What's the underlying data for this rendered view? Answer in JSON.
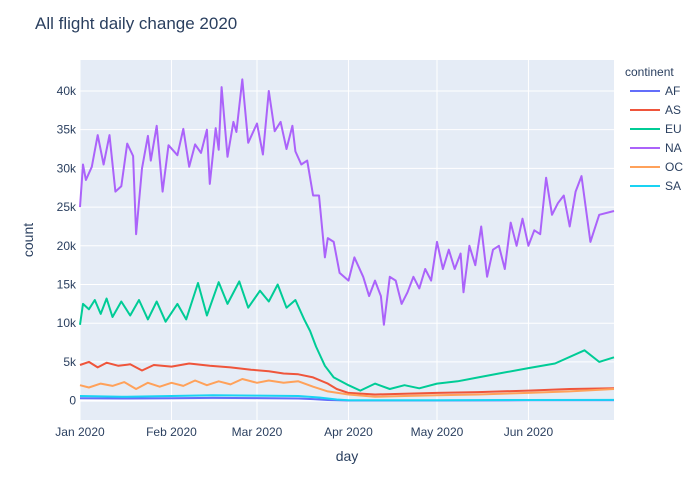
{
  "chart_data": {
    "type": "line",
    "title": "All flight daily change 2020",
    "xlabel": "day",
    "ylabel": "count",
    "x_range": [
      "2020-01-01",
      "2020-06-30"
    ],
    "x_ticks": [
      {
        "date": "2020-01-01",
        "label": "Jan 2020"
      },
      {
        "date": "2020-02-01",
        "label": "Feb 2020"
      },
      {
        "date": "2020-03-01",
        "label": "Mar 2020"
      },
      {
        "date": "2020-04-01",
        "label": "Apr 2020"
      },
      {
        "date": "2020-05-01",
        "label": "May 2020"
      },
      {
        "date": "2020-06-01",
        "label": "Jun 2020"
      }
    ],
    "ylim": [
      -2500,
      44000
    ],
    "y_ticks": [
      {
        "value": 0,
        "label": "0"
      },
      {
        "value": 5000,
        "label": "5k"
      },
      {
        "value": 10000,
        "label": "10k"
      },
      {
        "value": 15000,
        "label": "15k"
      },
      {
        "value": 20000,
        "label": "20k"
      },
      {
        "value": 25000,
        "label": "25k"
      },
      {
        "value": 30000,
        "label": "30k"
      },
      {
        "value": 35000,
        "label": "35k"
      },
      {
        "value": 40000,
        "label": "40k"
      }
    ],
    "legend": {
      "title": "continent",
      "position": "right"
    },
    "grid": true,
    "series": [
      {
        "name": "AF",
        "color": "#636efa",
        "points": [
          [
            "2020-01-01",
            300
          ],
          [
            "2020-01-15",
            280
          ],
          [
            "2020-02-01",
            320
          ],
          [
            "2020-02-15",
            350
          ],
          [
            "2020-03-01",
            330
          ],
          [
            "2020-03-15",
            280
          ],
          [
            "2020-03-20",
            200
          ],
          [
            "2020-03-25",
            80
          ],
          [
            "2020-04-01",
            20
          ],
          [
            "2020-05-01",
            25
          ],
          [
            "2020-06-01",
            40
          ],
          [
            "2020-06-30",
            60
          ]
        ]
      },
      {
        "name": "AS",
        "color": "#ef553b",
        "points": [
          [
            "2020-01-01",
            4600
          ],
          [
            "2020-01-04",
            5000
          ],
          [
            "2020-01-07",
            4300
          ],
          [
            "2020-01-10",
            4900
          ],
          [
            "2020-01-14",
            4500
          ],
          [
            "2020-01-18",
            4700
          ],
          [
            "2020-01-22",
            3900
          ],
          [
            "2020-01-26",
            4600
          ],
          [
            "2020-02-01",
            4400
          ],
          [
            "2020-02-07",
            4800
          ],
          [
            "2020-02-14",
            4500
          ],
          [
            "2020-02-21",
            4300
          ],
          [
            "2020-02-28",
            4000
          ],
          [
            "2020-03-05",
            3800
          ],
          [
            "2020-03-10",
            3500
          ],
          [
            "2020-03-15",
            3400
          ],
          [
            "2020-03-20",
            3000
          ],
          [
            "2020-03-25",
            2200
          ],
          [
            "2020-03-28",
            1500
          ],
          [
            "2020-04-01",
            1000
          ],
          [
            "2020-04-10",
            800
          ],
          [
            "2020-04-20",
            900
          ],
          [
            "2020-05-01",
            1000
          ],
          [
            "2020-05-15",
            1100
          ],
          [
            "2020-06-01",
            1300
          ],
          [
            "2020-06-15",
            1500
          ],
          [
            "2020-06-30",
            1600
          ]
        ]
      },
      {
        "name": "EU",
        "color": "#00cc96",
        "points": [
          [
            "2020-01-01",
            9800
          ],
          [
            "2020-01-02",
            12500
          ],
          [
            "2020-01-04",
            11800
          ],
          [
            "2020-01-06",
            13000
          ],
          [
            "2020-01-08",
            11200
          ],
          [
            "2020-01-10",
            13200
          ],
          [
            "2020-01-12",
            10800
          ],
          [
            "2020-01-15",
            12800
          ],
          [
            "2020-01-18",
            11000
          ],
          [
            "2020-01-21",
            13000
          ],
          [
            "2020-01-24",
            10500
          ],
          [
            "2020-01-27",
            12800
          ],
          [
            "2020-01-30",
            10200
          ],
          [
            "2020-02-03",
            12500
          ],
          [
            "2020-02-06",
            10500
          ],
          [
            "2020-02-10",
            15200
          ],
          [
            "2020-02-13",
            11000
          ],
          [
            "2020-02-17",
            15300
          ],
          [
            "2020-02-20",
            12500
          ],
          [
            "2020-02-24",
            15400
          ],
          [
            "2020-02-27",
            12000
          ],
          [
            "2020-03-02",
            14200
          ],
          [
            "2020-03-05",
            12800
          ],
          [
            "2020-03-08",
            15000
          ],
          [
            "2020-03-11",
            12000
          ],
          [
            "2020-03-14",
            13000
          ],
          [
            "2020-03-17",
            10500
          ],
          [
            "2020-03-19",
            9000
          ],
          [
            "2020-03-21",
            7000
          ],
          [
            "2020-03-24",
            4500
          ],
          [
            "2020-03-27",
            3000
          ],
          [
            "2020-04-01",
            2000
          ],
          [
            "2020-04-05",
            1300
          ],
          [
            "2020-04-10",
            2200
          ],
          [
            "2020-04-15",
            1500
          ],
          [
            "2020-04-20",
            2000
          ],
          [
            "2020-04-25",
            1600
          ],
          [
            "2020-05-01",
            2200
          ],
          [
            "2020-05-08",
            2500
          ],
          [
            "2020-05-15",
            3000
          ],
          [
            "2020-05-22",
            3500
          ],
          [
            "2020-06-01",
            4200
          ],
          [
            "2020-06-10",
            4800
          ],
          [
            "2020-06-20",
            6500
          ],
          [
            "2020-06-25",
            5000
          ],
          [
            "2020-06-30",
            5600
          ]
        ]
      },
      {
        "name": "NA",
        "color": "#ab63fa",
        "points": [
          [
            "2020-01-01",
            25000
          ],
          [
            "2020-01-02",
            30500
          ],
          [
            "2020-01-03",
            28500
          ],
          [
            "2020-01-05",
            30200
          ],
          [
            "2020-01-07",
            34300
          ],
          [
            "2020-01-09",
            30500
          ],
          [
            "2020-01-11",
            34300
          ],
          [
            "2020-01-13",
            27000
          ],
          [
            "2020-01-15",
            27700
          ],
          [
            "2020-01-17",
            33200
          ],
          [
            "2020-01-19",
            31600
          ],
          [
            "2020-01-20",
            21500
          ],
          [
            "2020-01-22",
            30000
          ],
          [
            "2020-01-24",
            34200
          ],
          [
            "2020-01-25",
            31000
          ],
          [
            "2020-01-27",
            35500
          ],
          [
            "2020-01-29",
            27000
          ],
          [
            "2020-01-31",
            33000
          ],
          [
            "2020-02-03",
            31700
          ],
          [
            "2020-02-05",
            35100
          ],
          [
            "2020-02-07",
            30200
          ],
          [
            "2020-02-09",
            33100
          ],
          [
            "2020-02-11",
            32000
          ],
          [
            "2020-02-13",
            35000
          ],
          [
            "2020-02-14",
            28000
          ],
          [
            "2020-02-16",
            35200
          ],
          [
            "2020-02-17",
            32400
          ],
          [
            "2020-02-18",
            40500
          ],
          [
            "2020-02-20",
            31500
          ],
          [
            "2020-02-22",
            36000
          ],
          [
            "2020-02-23",
            34700
          ],
          [
            "2020-02-25",
            41500
          ],
          [
            "2020-02-27",
            33300
          ],
          [
            "2020-03-01",
            35800
          ],
          [
            "2020-03-03",
            31800
          ],
          [
            "2020-03-05",
            40000
          ],
          [
            "2020-03-07",
            34800
          ],
          [
            "2020-03-09",
            36000
          ],
          [
            "2020-03-11",
            32500
          ],
          [
            "2020-03-13",
            35500
          ],
          [
            "2020-03-14",
            32200
          ],
          [
            "2020-03-16",
            30500
          ],
          [
            "2020-03-18",
            31000
          ],
          [
            "2020-03-20",
            26500
          ],
          [
            "2020-03-22",
            26500
          ],
          [
            "2020-03-24",
            18500
          ],
          [
            "2020-03-25",
            21000
          ],
          [
            "2020-03-27",
            20500
          ],
          [
            "2020-03-29",
            16500
          ],
          [
            "2020-04-01",
            15500
          ],
          [
            "2020-04-03",
            18500
          ],
          [
            "2020-04-06",
            16000
          ],
          [
            "2020-04-08",
            13500
          ],
          [
            "2020-04-10",
            15500
          ],
          [
            "2020-04-12",
            13500
          ],
          [
            "2020-04-13",
            9800
          ],
          [
            "2020-04-15",
            16000
          ],
          [
            "2020-04-17",
            15500
          ],
          [
            "2020-04-19",
            12500
          ],
          [
            "2020-04-21",
            14000
          ],
          [
            "2020-04-23",
            16000
          ],
          [
            "2020-04-25",
            14500
          ],
          [
            "2020-04-27",
            17000
          ],
          [
            "2020-04-29",
            15500
          ],
          [
            "2020-05-01",
            20500
          ],
          [
            "2020-05-03",
            17000
          ],
          [
            "2020-05-05",
            19500
          ],
          [
            "2020-05-07",
            17000
          ],
          [
            "2020-05-09",
            19000
          ],
          [
            "2020-05-10",
            14000
          ],
          [
            "2020-05-12",
            20000
          ],
          [
            "2020-05-14",
            17500
          ],
          [
            "2020-05-16",
            22500
          ],
          [
            "2020-05-18",
            16000
          ],
          [
            "2020-05-20",
            19500
          ],
          [
            "2020-05-22",
            20000
          ],
          [
            "2020-05-24",
            17000
          ],
          [
            "2020-05-26",
            23000
          ],
          [
            "2020-05-28",
            20000
          ],
          [
            "2020-05-30",
            23500
          ],
          [
            "2020-06-01",
            20000
          ],
          [
            "2020-06-03",
            22000
          ],
          [
            "2020-06-05",
            21500
          ],
          [
            "2020-06-07",
            28800
          ],
          [
            "2020-06-09",
            24000
          ],
          [
            "2020-06-11",
            25500
          ],
          [
            "2020-06-13",
            26500
          ],
          [
            "2020-06-15",
            22500
          ],
          [
            "2020-06-17",
            27000
          ],
          [
            "2020-06-19",
            29000
          ],
          [
            "2020-06-22",
            20500
          ],
          [
            "2020-06-25",
            24000
          ],
          [
            "2020-06-30",
            24500
          ]
        ]
      },
      {
        "name": "OC",
        "color": "#ffa15a",
        "points": [
          [
            "2020-01-01",
            2000
          ],
          [
            "2020-01-04",
            1700
          ],
          [
            "2020-01-08",
            2200
          ],
          [
            "2020-01-12",
            1900
          ],
          [
            "2020-01-16",
            2400
          ],
          [
            "2020-01-20",
            1500
          ],
          [
            "2020-01-24",
            2300
          ],
          [
            "2020-01-28",
            1800
          ],
          [
            "2020-02-01",
            2300
          ],
          [
            "2020-02-05",
            1900
          ],
          [
            "2020-02-09",
            2600
          ],
          [
            "2020-02-13",
            2000
          ],
          [
            "2020-02-17",
            2500
          ],
          [
            "2020-02-21",
            2100
          ],
          [
            "2020-02-25",
            2800
          ],
          [
            "2020-03-01",
            2300
          ],
          [
            "2020-03-05",
            2600
          ],
          [
            "2020-03-10",
            2300
          ],
          [
            "2020-03-15",
            2500
          ],
          [
            "2020-03-20",
            1800
          ],
          [
            "2020-03-25",
            1200
          ],
          [
            "2020-04-01",
            800
          ],
          [
            "2020-04-10",
            500
          ],
          [
            "2020-04-20",
            600
          ],
          [
            "2020-05-01",
            700
          ],
          [
            "2020-05-15",
            800
          ],
          [
            "2020-06-01",
            1000
          ],
          [
            "2020-06-15",
            1200
          ],
          [
            "2020-06-30",
            1500
          ]
        ]
      },
      {
        "name": "SA",
        "color": "#19d3f3",
        "points": [
          [
            "2020-01-01",
            600
          ],
          [
            "2020-01-15",
            500
          ],
          [
            "2020-02-01",
            600
          ],
          [
            "2020-02-15",
            700
          ],
          [
            "2020-03-01",
            650
          ],
          [
            "2020-03-15",
            600
          ],
          [
            "2020-03-22",
            400
          ],
          [
            "2020-03-28",
            150
          ],
          [
            "2020-04-01",
            50
          ],
          [
            "2020-05-01",
            60
          ],
          [
            "2020-06-01",
            80
          ],
          [
            "2020-06-30",
            100
          ]
        ]
      }
    ]
  }
}
